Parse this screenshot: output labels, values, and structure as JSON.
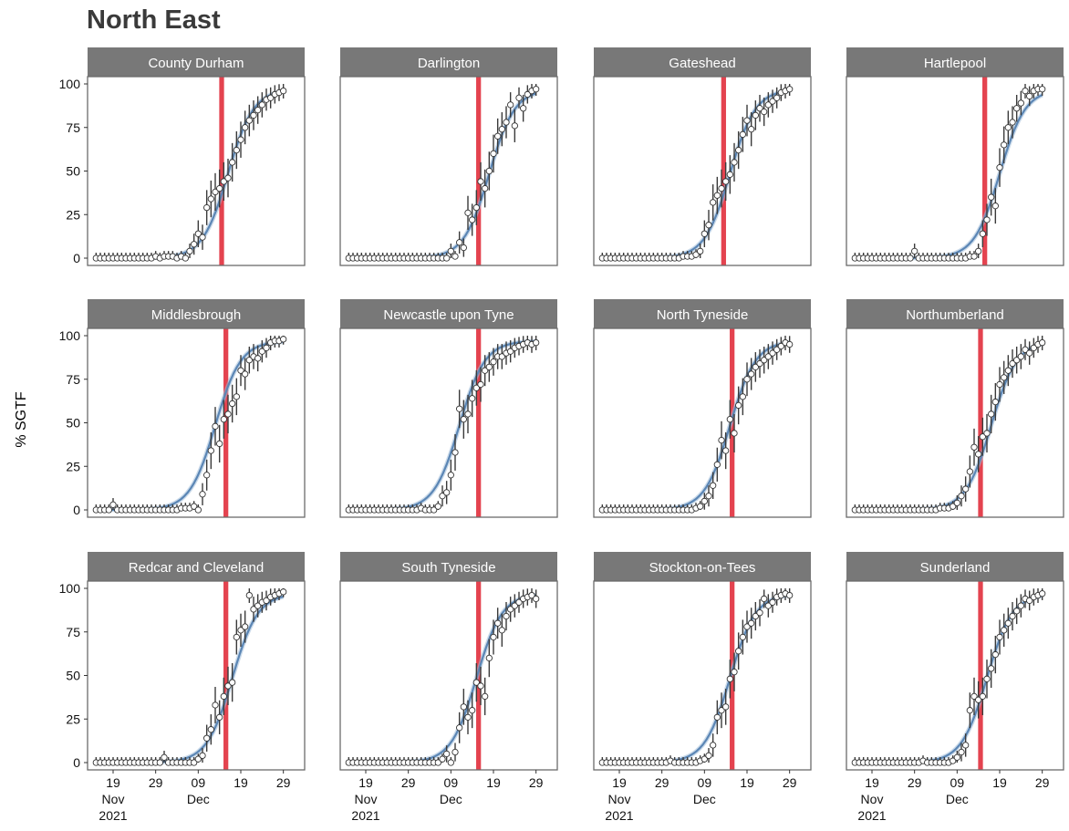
{
  "chart_data": {
    "type": "scatter",
    "title": "North East",
    "ylabel": "% SGTF",
    "xlabel": "",
    "ylim": [
      0,
      100
    ],
    "yticks": [
      0,
      25,
      50,
      75,
      100
    ],
    "xlim": [
      "2021-11-13",
      "2022-01-03"
    ],
    "xtick_labels": [
      {
        "date": "2021-11-19",
        "label": "19",
        "sub1": "Nov",
        "sub2": "2021"
      },
      {
        "date": "2021-11-29",
        "label": "29",
        "sub1": "",
        "sub2": ""
      },
      {
        "date": "2021-12-09",
        "label": "09",
        "sub1": "Dec",
        "sub2": ""
      },
      {
        "date": "2021-12-19",
        "label": "19",
        "sub1": "",
        "sub2": ""
      },
      {
        "date": "2021-12-29",
        "label": "29",
        "sub1": "",
        "sub2": ""
      }
    ],
    "grid": false,
    "legend": "none",
    "x_start": "2021-11-15",
    "colors": {
      "fit": "#5b86b5",
      "band": "#e4434f",
      "point_fill": "#ffffff",
      "strip": "#787878",
      "errorbar": "#3a3a3a"
    },
    "panels": [
      {
        "name": "County Durham",
        "intro": "2021-12-14",
        "values": [
          0,
          0,
          0,
          0,
          0,
          0,
          0,
          0,
          0,
          0,
          0,
          0,
          0,
          0,
          1,
          0,
          1,
          1,
          1,
          0,
          1,
          0,
          4,
          8,
          14,
          12,
          29,
          34,
          38,
          40,
          44,
          46,
          55,
          62,
          68,
          75,
          79,
          82,
          85,
          88,
          91,
          92,
          94,
          95,
          96
        ]
      },
      {
        "name": "Darlington",
        "intro": "2021-12-15",
        "values": [
          0,
          0,
          0,
          0,
          0,
          0,
          0,
          0,
          0,
          0,
          0,
          0,
          0,
          0,
          0,
          0,
          0,
          0,
          0,
          0,
          0,
          0,
          0,
          0,
          4,
          1,
          9,
          6,
          26,
          22,
          29,
          44,
          40,
          50,
          60,
          70,
          74,
          78,
          88,
          76,
          92,
          86,
          94,
          96,
          97
        ]
      },
      {
        "name": "Gateshead",
        "intro": "2021-12-13",
        "values": [
          0,
          0,
          0,
          0,
          0,
          0,
          0,
          0,
          0,
          0,
          0,
          0,
          0,
          0,
          0,
          0,
          0,
          0,
          0,
          1,
          1,
          1,
          2,
          4,
          14,
          19,
          32,
          36,
          40,
          44,
          48,
          55,
          62,
          71,
          79,
          74,
          82,
          86,
          84,
          88,
          90,
          92,
          95,
          96,
          97
        ]
      },
      {
        "name": "Hartlepool",
        "intro": "2021-12-15",
        "values": [
          0,
          0,
          0,
          0,
          0,
          0,
          0,
          0,
          0,
          0,
          0,
          0,
          0,
          0,
          4,
          0,
          0,
          0,
          0,
          0,
          0,
          0,
          0,
          0,
          0,
          0,
          0,
          1,
          1,
          4,
          14,
          22,
          35,
          30,
          52,
          65,
          75,
          78,
          86,
          89,
          96,
          93,
          96,
          97,
          97
        ]
      },
      {
        "name": "Middlesbrough",
        "intro": "2021-12-15",
        "values": [
          0,
          0,
          0,
          0,
          3,
          0,
          0,
          0,
          0,
          0,
          0,
          0,
          0,
          0,
          0,
          0,
          0,
          0,
          0,
          0,
          1,
          1,
          1,
          2,
          0,
          9,
          20,
          34,
          48,
          38,
          52,
          55,
          61,
          65,
          80,
          78,
          86,
          88,
          87,
          91,
          93,
          96,
          97,
          97,
          98
        ]
      },
      {
        "name": "Newcastle upon Tyne",
        "intro": "2021-12-15",
        "values": [
          0,
          0,
          0,
          0,
          0,
          0,
          0,
          0,
          0,
          0,
          0,
          0,
          0,
          0,
          0,
          0,
          0,
          1,
          0,
          0,
          0,
          2,
          8,
          10,
          20,
          33,
          58,
          52,
          55,
          64,
          70,
          72,
          80,
          82,
          85,
          88,
          88,
          90,
          91,
          93,
          94,
          95,
          96,
          95,
          96
        ]
      },
      {
        "name": "North Tyneside",
        "intro": "2021-12-15",
        "values": [
          0,
          0,
          0,
          0,
          0,
          0,
          0,
          0,
          0,
          0,
          0,
          0,
          0,
          0,
          0,
          0,
          0,
          0,
          0,
          0,
          0,
          0,
          1,
          2,
          5,
          8,
          14,
          26,
          40,
          34,
          52,
          44,
          60,
          65,
          75,
          78,
          82,
          84,
          86,
          88,
          90,
          92,
          94,
          96,
          95
        ]
      },
      {
        "name": "Northumberland",
        "intro": "2021-12-14",
        "values": [
          0,
          0,
          0,
          0,
          0,
          0,
          0,
          0,
          0,
          0,
          0,
          0,
          0,
          0,
          0,
          0,
          0,
          0,
          0,
          0,
          1,
          1,
          1,
          2,
          4,
          8,
          12,
          22,
          36,
          32,
          42,
          44,
          55,
          62,
          72,
          76,
          80,
          84,
          86,
          88,
          92,
          90,
          93,
          95,
          96
        ]
      },
      {
        "name": "Redcar and Cleveland",
        "intro": "2021-12-15",
        "values": [
          0,
          0,
          0,
          0,
          0,
          0,
          0,
          0,
          0,
          0,
          0,
          0,
          0,
          0,
          0,
          0,
          3,
          0,
          0,
          0,
          0,
          0,
          0,
          0,
          2,
          4,
          14,
          19,
          33,
          26,
          38,
          44,
          46,
          72,
          76,
          78,
          96,
          88,
          90,
          92,
          93,
          95,
          96,
          97,
          98
        ]
      },
      {
        "name": "South Tyneside",
        "intro": "2021-12-15",
        "values": [
          0,
          0,
          0,
          0,
          0,
          0,
          0,
          0,
          0,
          0,
          0,
          0,
          0,
          0,
          0,
          0,
          0,
          0,
          0,
          0,
          0,
          0,
          2,
          5,
          0,
          6,
          20,
          32,
          26,
          30,
          46,
          44,
          38,
          60,
          72,
          80,
          76,
          84,
          88,
          90,
          92,
          94,
          95,
          96,
          94
        ]
      },
      {
        "name": "Stockton-on-Tees",
        "intro": "2021-12-15",
        "values": [
          0,
          0,
          0,
          0,
          0,
          0,
          0,
          0,
          0,
          0,
          0,
          0,
          0,
          0,
          0,
          0,
          1,
          0,
          0,
          0,
          0,
          0,
          0,
          1,
          2,
          4,
          10,
          26,
          30,
          32,
          48,
          52,
          64,
          72,
          78,
          80,
          84,
          86,
          94,
          90,
          92,
          95,
          96,
          97,
          96
        ]
      },
      {
        "name": "Sunderland",
        "intro": "2021-12-14",
        "values": [
          0,
          0,
          0,
          0,
          0,
          0,
          0,
          0,
          0,
          0,
          0,
          0,
          0,
          0,
          0,
          0,
          1,
          0,
          0,
          0,
          0,
          0,
          0,
          1,
          3,
          6,
          10,
          30,
          38,
          36,
          38,
          48,
          54,
          62,
          72,
          76,
          80,
          84,
          87,
          90,
          94,
          93,
          95,
          96,
          97
        ]
      }
    ]
  }
}
